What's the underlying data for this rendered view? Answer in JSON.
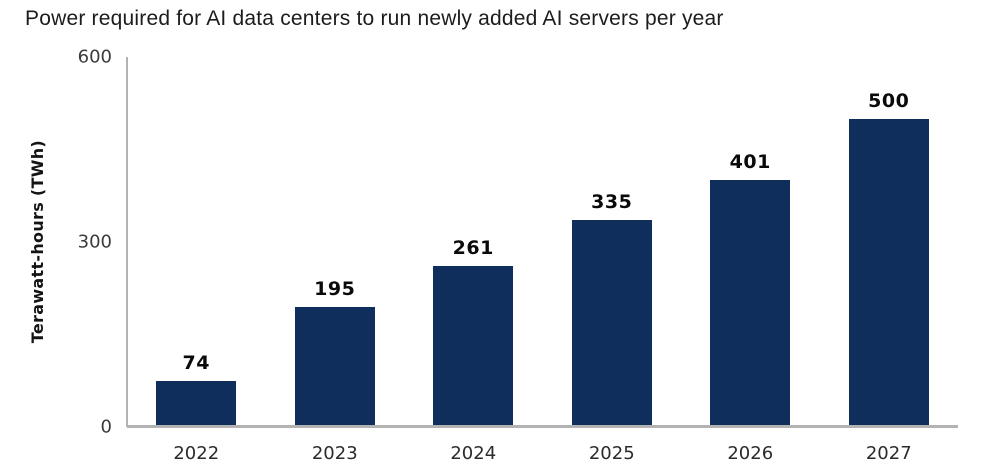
{
  "chart_data": {
    "type": "bar",
    "title": "Power required for AI data centers to run newly added AI servers per year",
    "xlabel": "",
    "ylabel": "Terawatt-hours (TWh)",
    "categories": [
      "2022",
      "2023",
      "2024",
      "2025",
      "2026",
      "2027"
    ],
    "values": [
      74,
      195,
      261,
      335,
      401,
      500
    ],
    "yticks": [
      0,
      300,
      600
    ],
    "ylim": [
      0,
      600
    ],
    "grid": "off",
    "legend": "none",
    "bar_color": "#0f2e5c",
    "axis_color": "#b3b3b3"
  }
}
